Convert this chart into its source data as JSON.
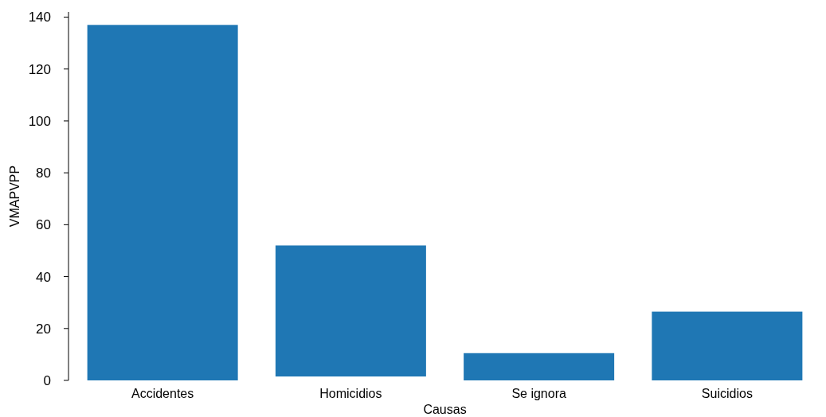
{
  "chart_data": {
    "type": "bar",
    "xlabel": "Causas",
    "ylabel": "VMAPVPP",
    "categories": [
      "Accidentes",
      "Homicidios",
      "Se ignora",
      "Suicidios"
    ],
    "values": [
      137,
      50.5,
      10.5,
      26.5
    ],
    "base": [
      0,
      1.5,
      0,
      0
    ],
    "color": "#1f77b4",
    "ylim": [
      0,
      142
    ],
    "yticks": [
      0,
      20,
      40,
      60,
      80,
      100,
      120,
      140
    ],
    "grid": false
  }
}
